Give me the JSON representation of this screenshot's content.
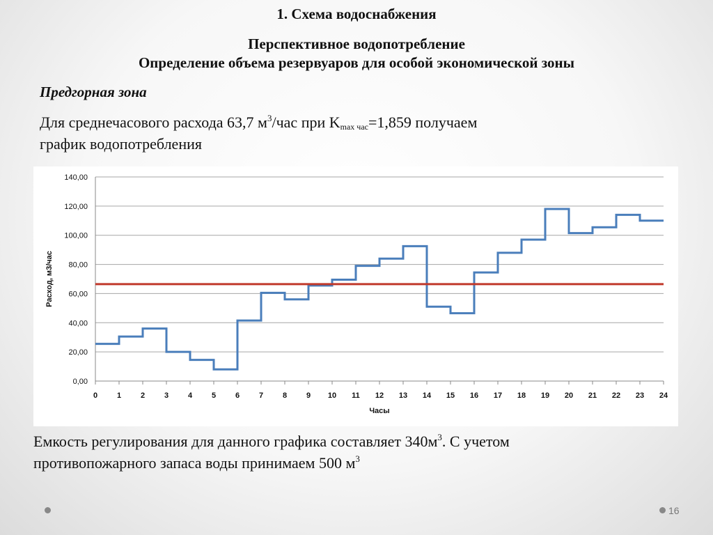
{
  "slide": {
    "title": "1. Схема водоснабжения",
    "subtitle_line1": "Перспективное водопотребление",
    "subtitle_line2": "Определение объема резервуаров для особой экономической зоны",
    "zone": "Предгорная зона",
    "desc_part1": "Для среднечасового расхода 63,7 м",
    "desc_sup": "3",
    "desc_part2": "/час при K",
    "desc_sub": "max час",
    "desc_part3": "=1,859 получаем",
    "desc_line2": "график водопотребления",
    "bottom_part1": "Емкость регулирования для данного графика составляет 340м",
    "bottom_sup1": "3",
    "bottom_part2": ". С учетом",
    "bottom_line2": "противопожарного запаса воды принимаем 500 м",
    "bottom_sup2": "3",
    "page_number": "16"
  },
  "chart_data": {
    "type": "line",
    "step": true,
    "xlabel": "Часы",
    "ylabel": "Расход, м3/час",
    "xlim": [
      0,
      24
    ],
    "ylim": [
      0,
      140
    ],
    "x_ticks": [
      "0",
      "1",
      "2",
      "3",
      "4",
      "5",
      "6",
      "7",
      "8",
      "9",
      "10",
      "11",
      "12",
      "13",
      "14",
      "15",
      "16",
      "17",
      "18",
      "19",
      "20",
      "21",
      "22",
      "23",
      "24"
    ],
    "y_ticks": [
      "0,00",
      "20,00",
      "40,00",
      "60,00",
      "80,00",
      "100,00",
      "120,00",
      "140,00"
    ],
    "grid": true,
    "series": [
      {
        "color": "#4a7ebb",
        "x": [
          0,
          1,
          2,
          3,
          4,
          5,
          6,
          7,
          8,
          9,
          10,
          11,
          12,
          13,
          14,
          15,
          16,
          17,
          18,
          19,
          20,
          21,
          22,
          23
        ],
        "values": [
          25.5,
          30.5,
          36,
          20,
          14.5,
          8,
          41.5,
          60.5,
          56,
          65.5,
          69.5,
          79,
          84,
          92.5,
          51,
          46.5,
          74.5,
          88,
          97,
          118,
          101.5,
          105.5,
          114,
          110
        ]
      },
      {
        "color": "#c0392b",
        "x": [
          0,
          24
        ],
        "values": [
          66.5,
          66.5
        ]
      }
    ]
  }
}
